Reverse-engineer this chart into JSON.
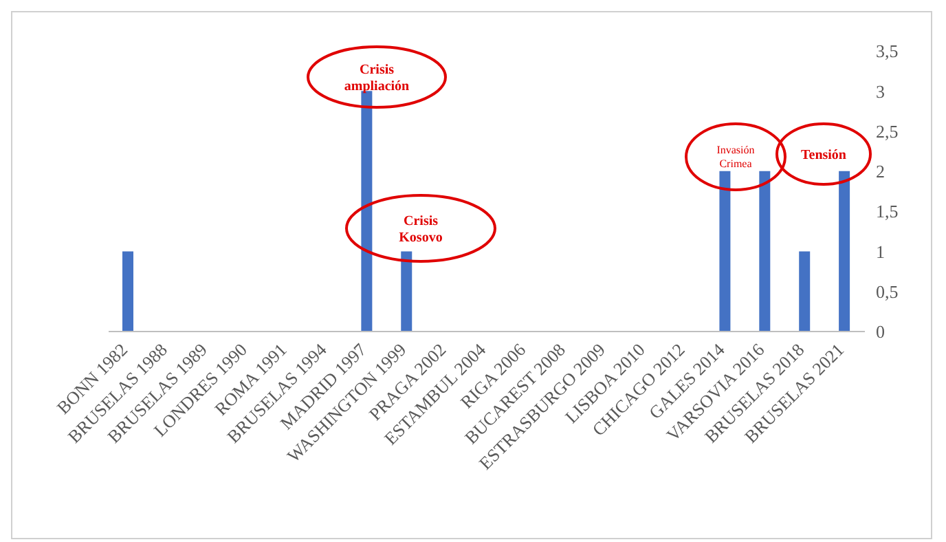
{
  "chart_data": {
    "type": "bar",
    "categories": [
      "BONN 1982",
      "BRUSELAS 1988",
      "BRUSELAS 1989",
      "LONDRES 1990",
      "ROMA 1991",
      "BRUSELAS 1994",
      "MADRID 1997",
      "WASHINGTON 1999",
      "PRAGA 2002",
      "ESTAMBUL 2004",
      "RIGA 2006",
      "BUCAREST 2008",
      "ESTRASBURGO 2009",
      "LISBOA 2010",
      "CHICAGO 2012",
      "GALES 2014",
      "VARSOVIA 2016",
      "BRUSELAS 2018",
      "BRUSELAS 2021"
    ],
    "values": [
      1,
      0,
      0,
      0,
      0,
      0,
      3,
      1,
      0,
      0,
      0,
      0,
      0,
      0,
      0,
      2,
      2,
      1,
      2
    ],
    "color": "#4472c4",
    "ylim": [
      0,
      3.5
    ],
    "yticks": [
      0,
      {
        "value": 0.5,
        "label": "0,5"
      },
      1,
      {
        "value": 1.5,
        "label": "1,5"
      },
      2,
      {
        "value": 2.5,
        "label": "2,5"
      },
      3,
      {
        "value": 3.5,
        "label": "3,5"
      }
    ],
    "grid": false,
    "annotations": [
      "Crisis ampliación",
      "Crisis Kosovo",
      "Invasión Crimea",
      "Tensión"
    ]
  }
}
